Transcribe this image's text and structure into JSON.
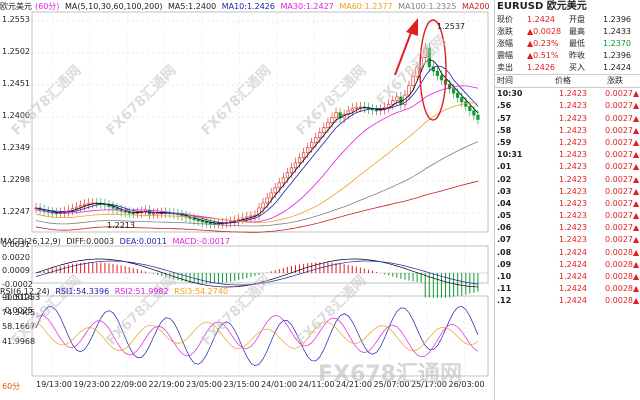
{
  "main_info": {
    "symbol": "欧元美元",
    "period": "(60分)",
    "ma_name": "MA(5,10,30,60,100,200)",
    "ma5": "MA5:1.2400",
    "ma10": "MA10:1.2426",
    "ma30": "MA30:1.2427",
    "ma60": "MA60:1.2377",
    "ma100": "MA100:1.2325",
    "ma200": "MA200"
  },
  "price_axis": [
    "1.2553",
    "1.2502",
    "1.2451",
    "1.2400",
    "1.2349",
    "1.2298",
    "1.2247"
  ],
  "annotations": {
    "high": "1.2537",
    "low": "1.2213"
  },
  "macd_info": {
    "name": "MACD(26,12,9)",
    "diff": "DIFF:0.0003",
    "dea": "DEA:0.0011",
    "macd": "MACD:-0.0017"
  },
  "macd_axis": [
    "0.0031",
    "0.0020",
    "0.0009",
    "-0.0002",
    "-0.0014",
    "-0.0025"
  ],
  "rsi_info": {
    "name": "RSI(6,12,24)",
    "rsi1": "RSI1:54.3396",
    "rsi2": "RSI2:51.9982",
    "rsi3": "RSI3:54.2740"
  },
  "rsi_axis": [
    "90.51253",
    "74.3405",
    "58.1667",
    "41.9968"
  ],
  "time_axis": [
    "19/13:00",
    "19/23:00",
    "22/09:00",
    "22/19:00",
    "23/05:00",
    "23/15:00",
    "24/01:00",
    "24/11:00",
    "24/21:00",
    "25/07:00",
    "25/17:00",
    "26/03:00"
  ],
  "period_button": "60分",
  "watermark_text": "FX678汇通网",
  "quote": {
    "title": "EURUSD 欧元美元",
    "rows": [
      {
        "l1": "现价",
        "v1": "1.2424",
        "l2": "开盘",
        "v2": "1.2396"
      },
      {
        "l1": "涨跌",
        "v1": "▲0.0028",
        "l2": "最高",
        "v2": "1.2433"
      },
      {
        "l1": "涨幅",
        "v1": "▲0.23%",
        "l2": "最低",
        "v2": "1.2370"
      },
      {
        "l1": "震幅",
        "v1": "▲0.51%",
        "l2": "昨收",
        "v2": "1.2396"
      },
      {
        "l1": "卖出",
        "v1": "1.2426",
        "l2": "买入",
        "v2": "1.2424"
      }
    ],
    "tick_header": {
      "time": "时间",
      "price": "价格",
      "change": "涨跌"
    },
    "ticks": [
      {
        "t": "10:30",
        "p": "1.2423",
        "c": "0.0027"
      },
      {
        "t": ".56",
        "p": "1.2423",
        "c": "0.0027"
      },
      {
        "t": ".57",
        "p": "1.2423",
        "c": "0.0027"
      },
      {
        "t": ".58",
        "p": "1.2423",
        "c": "0.0027"
      },
      {
        "t": ".59",
        "p": "1.2423",
        "c": "0.0027"
      },
      {
        "t": "10:31",
        "p": "1.2423",
        "c": "0.0027"
      },
      {
        "t": ".01",
        "p": "1.2423",
        "c": "0.0027"
      },
      {
        "t": ".02",
        "p": "1.2423",
        "c": "0.0027"
      },
      {
        "t": ".03",
        "p": "1.2423",
        "c": "0.0027"
      },
      {
        "t": ".04",
        "p": "1.2423",
        "c": "0.0027"
      },
      {
        "t": ".05",
        "p": "1.2423",
        "c": "0.0027"
      },
      {
        "t": ".06",
        "p": "1.2423",
        "c": "0.0027"
      },
      {
        "t": ".07",
        "p": "1.2423",
        "c": "0.0027"
      },
      {
        "t": ".08",
        "p": "1.2424",
        "c": "0.0028"
      },
      {
        "t": ".09",
        "p": "1.2424",
        "c": "0.0028"
      },
      {
        "t": ".10",
        "p": "1.2424",
        "c": "0.0028"
      },
      {
        "t": ".11",
        "p": "1.2424",
        "c": "0.0028"
      },
      {
        "t": ".12",
        "p": "1.2424",
        "c": "0.0028"
      }
    ]
  },
  "colors": {
    "up": "#e02020",
    "down": "#0a9a30",
    "ma5": "#000000",
    "ma10": "#2020b0",
    "ma30": "#e020e0",
    "ma60": "#f0a020",
    "ma100": "#808080",
    "ma200": "#c02020",
    "highlight": "#e02020"
  }
}
